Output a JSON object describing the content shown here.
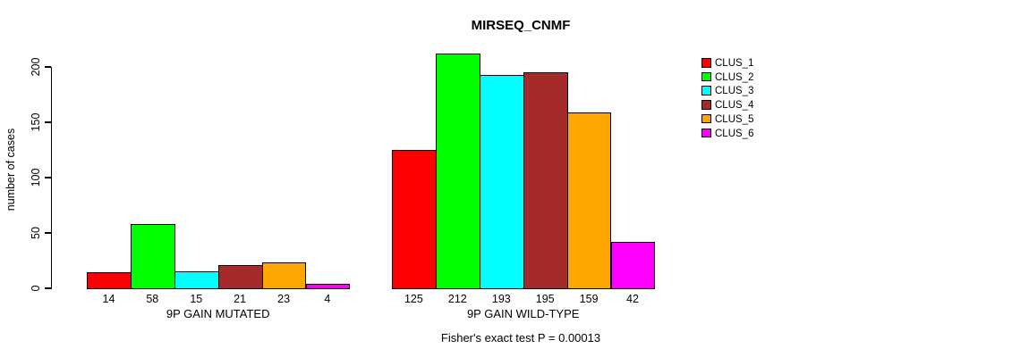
{
  "chart_data": {
    "type": "bar",
    "title": "MIRSEQ_CNMF",
    "ylabel": "number of cases",
    "xlabel": "",
    "ylim": [
      0,
      200
    ],
    "yticks": [
      0,
      50,
      100,
      150,
      200
    ],
    "grid": false,
    "legend_position": "right",
    "categories": [
      "9P GAIN MUTATED",
      "9P GAIN WILD-TYPE"
    ],
    "series": [
      {
        "name": "CLUS_1",
        "color": "#FF0000",
        "values": [
          14,
          125
        ]
      },
      {
        "name": "CLUS_2",
        "color": "#00FF00",
        "values": [
          58,
          212
        ]
      },
      {
        "name": "CLUS_3",
        "color": "#00FFFF",
        "values": [
          15,
          193
        ]
      },
      {
        "name": "CLUS_4",
        "color": "#A52A2A",
        "values": [
          21,
          195
        ]
      },
      {
        "name": "CLUS_5",
        "color": "#FFA500",
        "values": [
          23,
          159
        ]
      },
      {
        "name": "CLUS_6",
        "color": "#FF00FF",
        "values": [
          4,
          42
        ]
      }
    ],
    "bar_value_labels_shown": true,
    "annotation": "Fisher's exact test P = 0.00013"
  }
}
